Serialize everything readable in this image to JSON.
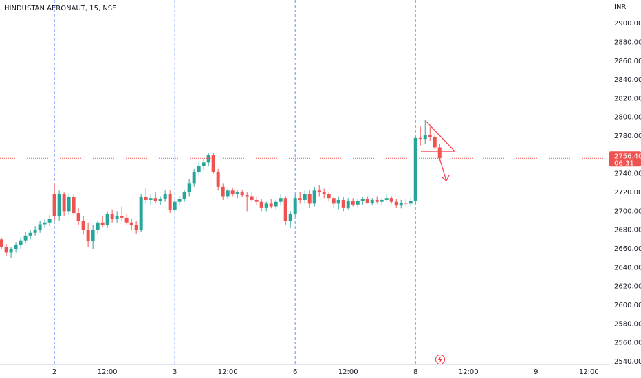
{
  "chart_data": {
    "type": "candlestick",
    "title": "HINDUSTAN AERONAUT, 15, NSE",
    "currency": "INR",
    "up_color": "#26a69a",
    "down_color": "#ef5350",
    "x": [
      0,
      1,
      2,
      3,
      4,
      5,
      6,
      7,
      8,
      9,
      10,
      11,
      12,
      13,
      14,
      15,
      16,
      17,
      18,
      19,
      20,
      21,
      22,
      23,
      24,
      25,
      26,
      27,
      28,
      29,
      30,
      31,
      32,
      33,
      34,
      35,
      36,
      37,
      38,
      39,
      40,
      41,
      42,
      43,
      44,
      45,
      46,
      47,
      48,
      49,
      50,
      51,
      52,
      53,
      54,
      55,
      56,
      57,
      58,
      59,
      60,
      61,
      62,
      63,
      64,
      65,
      66,
      67,
      68,
      69,
      70,
      71,
      72,
      73,
      74,
      75,
      76,
      77,
      78,
      79,
      80,
      81,
      82,
      83,
      84,
      85,
      86,
      87,
      88,
      89,
      90,
      91
    ],
    "open": [
      2670,
      2662,
      2656,
      2660,
      2664,
      2669,
      2674,
      2677,
      2680,
      2686,
      2688,
      2718,
      2695,
      2718,
      2700,
      2715,
      2698,
      2690,
      2680,
      2668,
      2680,
      2688,
      2685,
      2697,
      2692,
      2695,
      2693,
      2688,
      2685,
      2680,
      2715,
      2712,
      2714,
      2711,
      2713,
      2718,
      2701,
      2710,
      2713,
      2720,
      2730,
      2742,
      2748,
      2752,
      2760,
      2742,
      2726,
      2716,
      2722,
      2718,
      2720,
      2717,
      2716,
      2712,
      2710,
      2704,
      2708,
      2705,
      2710,
      2714,
      2690,
      2697,
      2714,
      2712,
      2718,
      2708,
      2722,
      2720,
      2718,
      2714,
      2708,
      2712,
      2704,
      2711,
      2707,
      2711,
      2713,
      2709,
      2712,
      2710,
      2712,
      2714,
      2710,
      2706,
      2709,
      2708,
      2711,
      2778,
      2777,
      2781,
      2779,
      2768
    ],
    "high": [
      2672,
      2665,
      2662,
      2667,
      2672,
      2678,
      2680,
      2684,
      2690,
      2692,
      2696,
      2730,
      2722,
      2720,
      2718,
      2718,
      2704,
      2695,
      2688,
      2685,
      2690,
      2695,
      2700,
      2702,
      2700,
      2705,
      2697,
      2692,
      2690,
      2718,
      2725,
      2718,
      2720,
      2716,
      2722,
      2722,
      2712,
      2716,
      2722,
      2734,
      2745,
      2752,
      2756,
      2762,
      2762,
      2745,
      2730,
      2724,
      2725,
      2722,
      2723,
      2720,
      2720,
      2716,
      2713,
      2710,
      2713,
      2712,
      2718,
      2716,
      2700,
      2718,
      2720,
      2722,
      2722,
      2726,
      2728,
      2724,
      2720,
      2716,
      2716,
      2715,
      2714,
      2714,
      2713,
      2715,
      2716,
      2714,
      2716,
      2714,
      2718,
      2716,
      2713,
      2712,
      2713,
      2714,
      2780,
      2790,
      2797,
      2790,
      2782,
      2772
    ],
    "low": [
      2660,
      2652,
      2650,
      2656,
      2660,
      2666,
      2670,
      2674,
      2677,
      2682,
      2684,
      2690,
      2690,
      2695,
      2696,
      2696,
      2685,
      2675,
      2662,
      2660,
      2676,
      2683,
      2682,
      2688,
      2688,
      2690,
      2685,
      2680,
      2676,
      2678,
      2708,
      2706,
      2709,
      2706,
      2710,
      2698,
      2699,
      2706,
      2710,
      2716,
      2726,
      2738,
      2744,
      2748,
      2740,
      2722,
      2712,
      2713,
      2716,
      2714,
      2715,
      2700,
      2710,
      2706,
      2700,
      2700,
      2703,
      2702,
      2706,
      2685,
      2682,
      2694,
      2708,
      2708,
      2704,
      2705,
      2716,
      2714,
      2710,
      2704,
      2702,
      2700,
      2702,
      2705,
      2704,
      2707,
      2708,
      2706,
      2708,
      2706,
      2710,
      2708,
      2704,
      2703,
      2706,
      2705,
      2708,
      2770,
      2772,
      2775,
      2766,
      2754
    ],
    "close": [
      2662,
      2656,
      2660,
      2664,
      2669,
      2674,
      2677,
      2680,
      2686,
      2688,
      2692,
      2695,
      2718,
      2700,
      2715,
      2698,
      2690,
      2680,
      2668,
      2680,
      2688,
      2685,
      2697,
      2692,
      2695,
      2693,
      2688,
      2685,
      2680,
      2715,
      2712,
      2714,
      2711,
      2713,
      2718,
      2701,
      2710,
      2713,
      2720,
      2730,
      2742,
      2748,
      2752,
      2760,
      2742,
      2726,
      2716,
      2722,
      2718,
      2720,
      2717,
      2716,
      2712,
      2710,
      2704,
      2708,
      2705,
      2710,
      2714,
      2690,
      2697,
      2714,
      2712,
      2718,
      2708,
      2722,
      2720,
      2718,
      2714,
      2708,
      2712,
      2704,
      2711,
      2707,
      2711,
      2713,
      2709,
      2712,
      2710,
      2712,
      2714,
      2710,
      2706,
      2709,
      2708,
      2711,
      2778,
      2777,
      2781,
      2779,
      2768,
      2756.4
    ],
    "xlim": [
      -0.3,
      126.1
    ],
    "xticks": [
      {
        "value": 11,
        "label": "2"
      },
      {
        "value": 22,
        "label": "12:00"
      },
      {
        "value": 36,
        "label": "3"
      },
      {
        "value": 47,
        "label": "12:00"
      },
      {
        "value": 61,
        "label": "6"
      },
      {
        "value": 72,
        "label": "12:00"
      },
      {
        "value": 86,
        "label": "8"
      },
      {
        "value": 97,
        "label": "12:00"
      },
      {
        "value": 111,
        "label": "9"
      },
      {
        "value": 122,
        "label": "12:00"
      }
    ],
    "ylim": [
      2537,
      2925
    ],
    "yticks": [
      {
        "value": 2540,
        "label": "2540.00"
      },
      {
        "value": 2560,
        "label": "2560.00"
      },
      {
        "value": 2580,
        "label": "2580.00"
      },
      {
        "value": 2600,
        "label": "2600.00"
      },
      {
        "value": 2620,
        "label": "2620.00"
      },
      {
        "value": 2640,
        "label": "2640.00"
      },
      {
        "value": 2660,
        "label": "2660.00"
      },
      {
        "value": 2680,
        "label": "2680.00"
      },
      {
        "value": 2700,
        "label": "2700.00"
      },
      {
        "value": 2720,
        "label": "2720.00"
      },
      {
        "value": 2740,
        "label": "2740.00"
      },
      {
        "value": 2760,
        "label": "2760.00"
      },
      {
        "value": 2780,
        "label": "2780.00"
      },
      {
        "value": 2800,
        "label": "2800.00"
      },
      {
        "value": 2820,
        "label": "2820.00"
      },
      {
        "value": 2840,
        "label": "2840.00"
      },
      {
        "value": 2860,
        "label": "2860.00"
      },
      {
        "value": 2880,
        "label": "2880.00"
      },
      {
        "value": 2900,
        "label": "2900.00"
      }
    ],
    "last_price": {
      "value": 2756.4,
      "label": "2756.40"
    },
    "countdown": "06:31",
    "grid": false
  }
}
